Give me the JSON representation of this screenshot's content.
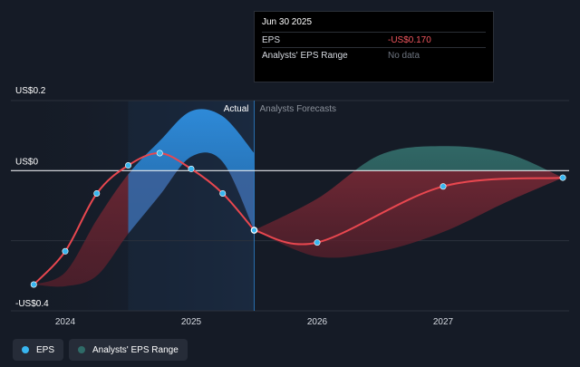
{
  "tooltip": {
    "title": "Jun 30 2025",
    "rows": [
      {
        "label": "EPS",
        "value": "-US$0.170"
      },
      {
        "label": "Analysts' EPS Range",
        "value": "No data"
      }
    ]
  },
  "legend": [
    {
      "label": "EPS",
      "color": "#38b6f0"
    },
    {
      "label": "Analysts' EPS Range",
      "color": "#2f6b68"
    }
  ],
  "chart_data": {
    "type": "line",
    "y_tick_labels": {
      "top": "US$0.2",
      "zero": "US$0",
      "bottom": "-US$0.4"
    },
    "ylim": [
      -0.4,
      0.2
    ],
    "x_ticks": [
      {
        "label": "2024",
        "x": 2024.0
      },
      {
        "label": "2025",
        "x": 2025.0
      },
      {
        "label": "2026",
        "x": 2026.0
      },
      {
        "label": "2027",
        "x": 2027.0
      }
    ],
    "period_labels": {
      "actual": "Actual",
      "forecast": "Analysts Forecasts"
    },
    "eps_actual": [
      {
        "x": 2023.75,
        "y": -0.325
      },
      {
        "x": 2024.0,
        "y": -0.23
      },
      {
        "x": 2024.25,
        "y": -0.065
      },
      {
        "x": 2024.5,
        "y": 0.015
      },
      {
        "x": 2024.75,
        "y": 0.05
      },
      {
        "x": 2025.0,
        "y": 0.005
      },
      {
        "x": 2025.25,
        "y": -0.065
      },
      {
        "x": 2025.5,
        "y": -0.17
      }
    ],
    "eps_forecast": [
      {
        "x": 2025.5,
        "y": -0.17
      },
      {
        "x": 2026.0,
        "y": -0.205
      },
      {
        "x": 2027.0,
        "y": -0.045
      },
      {
        "x": 2027.95,
        "y": -0.02
      }
    ],
    "actual_range_upper": [
      {
        "x": 2023.75,
        "y": -0.325
      },
      {
        "x": 2024.0,
        "y": -0.29
      },
      {
        "x": 2024.25,
        "y": -0.14
      },
      {
        "x": 2024.5,
        "y": -0.01
      },
      {
        "x": 2024.75,
        "y": 0.085
      },
      {
        "x": 2025.0,
        "y": 0.17
      },
      {
        "x": 2025.25,
        "y": 0.155
      },
      {
        "x": 2025.5,
        "y": 0.05
      }
    ],
    "actual_range_lower": [
      {
        "x": 2023.75,
        "y": -0.325
      },
      {
        "x": 2024.0,
        "y": -0.33
      },
      {
        "x": 2024.25,
        "y": -0.3
      },
      {
        "x": 2024.5,
        "y": -0.18
      },
      {
        "x": 2024.75,
        "y": -0.07
      },
      {
        "x": 2025.0,
        "y": 0.04
      },
      {
        "x": 2025.25,
        "y": 0.025
      },
      {
        "x": 2025.5,
        "y": -0.17
      }
    ],
    "forecast_range_upper": [
      {
        "x": 2025.5,
        "y": -0.17
      },
      {
        "x": 2026.0,
        "y": -0.08
      },
      {
        "x": 2026.5,
        "y": 0.045
      },
      {
        "x": 2027.0,
        "y": 0.07
      },
      {
        "x": 2027.5,
        "y": 0.05
      },
      {
        "x": 2027.95,
        "y": -0.02
      }
    ],
    "forecast_range_lower": [
      {
        "x": 2025.5,
        "y": -0.17
      },
      {
        "x": 2026.0,
        "y": -0.245
      },
      {
        "x": 2026.5,
        "y": -0.23
      },
      {
        "x": 2027.0,
        "y": -0.175
      },
      {
        "x": 2027.5,
        "y": -0.09
      },
      {
        "x": 2027.95,
        "y": -0.02
      }
    ],
    "colors": {
      "eps_line": "#e8474f",
      "marker": "#38b6f0",
      "actual_band": "#2f8fe0",
      "forecast_band_pos": "#2f6b68",
      "forecast_band_neg": "#7a2a36",
      "zero_line": "#e6e8eb",
      "gridline": "#2b313c"
    }
  }
}
